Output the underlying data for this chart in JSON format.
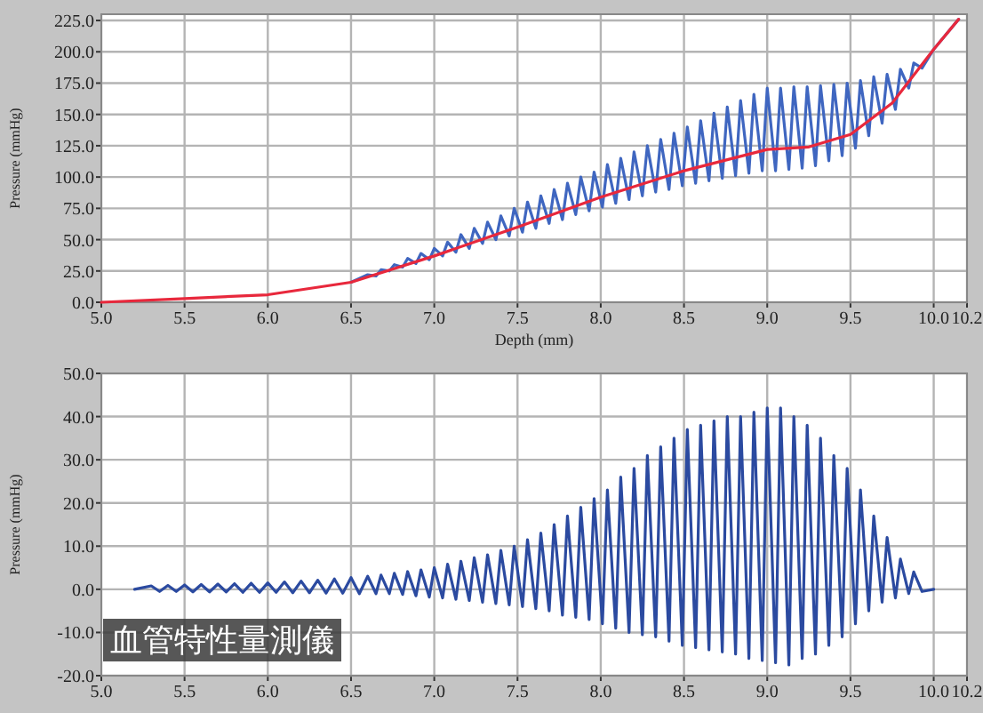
{
  "chart_data": [
    {
      "type": "line",
      "xlabel": "Depth (mm)",
      "ylabel": "Pressure (mmHg)",
      "xlim": [
        5.0,
        10.2
      ],
      "ylim": [
        0,
        230
      ],
      "xticks": [
        {
          "value": 5.0,
          "label": "5.0"
        },
        {
          "value": 5.5,
          "label": "5.5"
        },
        {
          "value": 6.0,
          "label": "6.0"
        },
        {
          "value": 6.5,
          "label": "6.5"
        },
        {
          "value": 7.0,
          "label": "7.0"
        },
        {
          "value": 7.5,
          "label": "7.5"
        },
        {
          "value": 8.0,
          "label": "8.0"
        },
        {
          "value": 8.5,
          "label": "8.5"
        },
        {
          "value": 9.0,
          "label": "9.0"
        },
        {
          "value": 9.5,
          "label": "9.5"
        },
        {
          "value": 10.0,
          "label": "10.0"
        },
        {
          "value": 10.2,
          "label": "10.2"
        }
      ],
      "yticks": [
        {
          "value": 0,
          "label": "0.0"
        },
        {
          "value": 25,
          "label": "25.0"
        },
        {
          "value": 50,
          "label": "50.0"
        },
        {
          "value": 75,
          "label": "75.0"
        },
        {
          "value": 100,
          "label": "100.0"
        },
        {
          "value": 125,
          "label": "125.0"
        },
        {
          "value": 150,
          "label": "150.0"
        },
        {
          "value": 175,
          "label": "175.0"
        },
        {
          "value": 200,
          "label": "200.0"
        },
        {
          "value": 225,
          "label": "225.0"
        }
      ],
      "grid": true,
      "series": [
        {
          "color": "#3f66c0",
          "x": [
            6.5,
            6.6,
            6.65,
            6.68,
            6.73,
            6.76,
            6.81,
            6.84,
            6.89,
            6.92,
            6.97,
            7.0,
            7.05,
            7.08,
            7.13,
            7.16,
            7.21,
            7.24,
            7.29,
            7.32,
            7.37,
            7.4,
            7.45,
            7.48,
            7.53,
            7.56,
            7.61,
            7.64,
            7.69,
            7.72,
            7.77,
            7.8,
            7.85,
            7.88,
            7.93,
            7.96,
            8.01,
            8.04,
            8.09,
            8.12,
            8.17,
            8.2,
            8.25,
            8.28,
            8.33,
            8.36,
            8.41,
            8.44,
            8.49,
            8.52,
            8.57,
            8.6,
            8.65,
            8.68,
            8.73,
            8.76,
            8.81,
            8.84,
            8.89,
            8.92,
            8.97,
            9.0,
            9.05,
            9.08,
            9.13,
            9.16,
            9.21,
            9.24,
            9.29,
            9.32,
            9.37,
            9.4,
            9.45,
            9.48,
            9.53,
            9.56,
            9.61,
            9.64,
            9.69,
            9.72,
            9.77,
            9.8,
            9.85,
            9.88,
            9.93,
            10.0,
            10.15
          ],
          "values": [
            16,
            22,
            21,
            26,
            25,
            30,
            28,
            35,
            31,
            39,
            34,
            43,
            37,
            48,
            40,
            54,
            43,
            59,
            47,
            64,
            50,
            69,
            53,
            75,
            56,
            80,
            59,
            85,
            63,
            90,
            66,
            95,
            70,
            100,
            73,
            104,
            76,
            110,
            79,
            115,
            82,
            120,
            85,
            125,
            88,
            130,
            90,
            135,
            93,
            140,
            95,
            145,
            97,
            151,
            99,
            156,
            101,
            161,
            103,
            166,
            105,
            171,
            105,
            171,
            106,
            172,
            107,
            172,
            109,
            173,
            113,
            174,
            117,
            175,
            123,
            177,
            133,
            180,
            143,
            182,
            154,
            186,
            171,
            191,
            187,
            202,
            226
          ]
        },
        {
          "color": "#e8283c",
          "x": [
            5.0,
            5.5,
            6.0,
            6.5,
            7.0,
            7.5,
            8.0,
            8.5,
            9.0,
            9.25,
            9.5,
            9.75,
            10.0,
            10.15
          ],
          "values": [
            0,
            3,
            6,
            16,
            37,
            60,
            84,
            105,
            122,
            124,
            134,
            159,
            202,
            226
          ]
        }
      ]
    },
    {
      "type": "line",
      "ylabel": "Pressure (mmHg)",
      "xlim": [
        5.0,
        10.2
      ],
      "ylim": [
        -20,
        50
      ],
      "xticks": [
        {
          "value": 5.0,
          "label": "5.0"
        },
        {
          "value": 5.5,
          "label": "5.5"
        },
        {
          "value": 6.0,
          "label": "6.0"
        },
        {
          "value": 6.5,
          "label": "6.5"
        },
        {
          "value": 7.0,
          "label": "7.0"
        },
        {
          "value": 7.5,
          "label": "7.5"
        },
        {
          "value": 8.0,
          "label": "8.0"
        },
        {
          "value": 8.5,
          "label": "8.5"
        },
        {
          "value": 9.0,
          "label": "9.0"
        },
        {
          "value": 9.5,
          "label": "9.5"
        },
        {
          "value": 10.0,
          "label": "10.0"
        },
        {
          "value": 10.2,
          "label": "10.2"
        }
      ],
      "yticks": [
        {
          "value": -20,
          "label": "-20.0"
        },
        {
          "value": -10,
          "label": "-10.0"
        },
        {
          "value": 0,
          "label": "0.0"
        },
        {
          "value": 10,
          "label": "10.0"
        },
        {
          "value": 20,
          "label": "20.0"
        },
        {
          "value": 30,
          "label": "30.0"
        },
        {
          "value": 40,
          "label": "40.0"
        },
        {
          "value": 50,
          "label": "50.0"
        }
      ],
      "grid": true,
      "annotations": [
        "血管特性量測儀"
      ],
      "series": [
        {
          "color": "#2b4aa0",
          "x": [
            5.2,
            5.3,
            5.35,
            5.4,
            5.45,
            5.5,
            5.55,
            5.6,
            5.65,
            5.7,
            5.75,
            5.8,
            5.85,
            5.9,
            5.95,
            6.0,
            6.05,
            6.1,
            6.15,
            6.2,
            6.25,
            6.3,
            6.35,
            6.4,
            6.45,
            6.5,
            6.55,
            6.6,
            6.65,
            6.68,
            6.73,
            6.76,
            6.81,
            6.84,
            6.89,
            6.92,
            6.97,
            7.0,
            7.05,
            7.08,
            7.13,
            7.16,
            7.21,
            7.24,
            7.29,
            7.32,
            7.37,
            7.4,
            7.45,
            7.48,
            7.53,
            7.56,
            7.61,
            7.64,
            7.69,
            7.72,
            7.77,
            7.8,
            7.85,
            7.88,
            7.93,
            7.96,
            8.01,
            8.04,
            8.09,
            8.12,
            8.17,
            8.2,
            8.25,
            8.28,
            8.33,
            8.36,
            8.41,
            8.44,
            8.49,
            8.52,
            8.57,
            8.6,
            8.65,
            8.68,
            8.73,
            8.76,
            8.81,
            8.84,
            8.89,
            8.92,
            8.97,
            9.0,
            9.05,
            9.08,
            9.13,
            9.16,
            9.21,
            9.24,
            9.29,
            9.32,
            9.37,
            9.4,
            9.45,
            9.48,
            9.53,
            9.56,
            9.61,
            9.64,
            9.69,
            9.72,
            9.77,
            9.8,
            9.85,
            9.88,
            9.93,
            10.0
          ],
          "values": [
            0,
            0.8,
            -0.5,
            0.9,
            -0.5,
            1,
            -0.6,
            1.1,
            -0.6,
            1.2,
            -0.6,
            1.3,
            -0.7,
            1.4,
            -0.7,
            1.5,
            -0.7,
            1.7,
            -0.8,
            1.9,
            -0.8,
            2.1,
            -0.9,
            2.4,
            -0.9,
            2.7,
            -1,
            3,
            -1,
            3.3,
            -1,
            3.7,
            -1.2,
            4.1,
            -1.5,
            4.5,
            -1.8,
            5,
            -2,
            5.8,
            -2.3,
            6.5,
            -2.6,
            7.3,
            -3,
            8,
            -3.3,
            9,
            -3.6,
            10,
            -4,
            11.5,
            -4.5,
            13,
            -5,
            15,
            -6,
            17,
            -6.5,
            19,
            -7,
            21,
            -8,
            23,
            -9,
            26,
            -10,
            28,
            -10.5,
            31,
            -11,
            33,
            -12,
            35,
            -13,
            37,
            -13.5,
            38,
            -14,
            39,
            -14.5,
            40,
            -15,
            40,
            -16,
            41,
            -16.5,
            42,
            -17,
            42,
            -17.5,
            40,
            -16,
            38,
            -15,
            35,
            -13,
            31,
            -11,
            28,
            -8,
            23,
            -5,
            17,
            -3,
            12,
            -2,
            7,
            -1,
            4,
            -0.5,
            0
          ]
        }
      ]
    }
  ]
}
